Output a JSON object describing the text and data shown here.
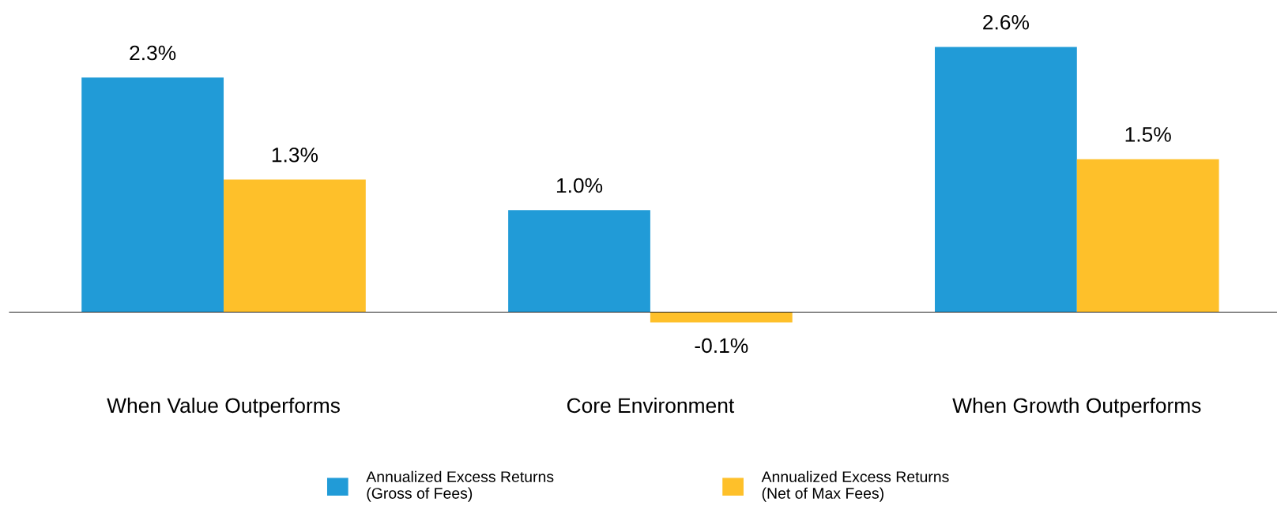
{
  "chart_data": {
    "type": "bar",
    "categories": [
      "When Value Outperforms",
      "Core Environment",
      "When Growth Outperforms"
    ],
    "series": [
      {
        "name": "Annualized Excess Returns\n(Gross of Fees)",
        "color": "#219bd7",
        "values": [
          2.3,
          1.0,
          2.6
        ],
        "value_labels": [
          "2.3%",
          "1.0%",
          "2.6%"
        ]
      },
      {
        "name": "Annualized Excess Returns\n(Net of Max Fees)",
        "color": "#fec02a",
        "values": [
          1.3,
          -0.1,
          1.5
        ],
        "value_labels": [
          "1.3%",
          "-0.1%",
          "1.5%"
        ]
      }
    ],
    "tick_labels": "x",
    "grid": false,
    "legend": "bottom"
  }
}
